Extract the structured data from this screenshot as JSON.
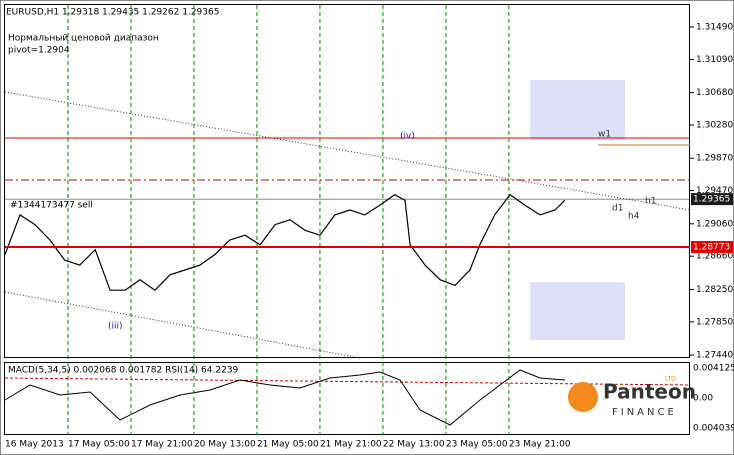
{
  "chart_data": [
    {
      "type": "line",
      "title": "EURUSD,H1  1.29318 1.29435 1.29262 1.29365",
      "annotations": [
        "Нормальный ценовой диапазон",
        "pivot=1.2904",
        "#1344173477 sell",
        "(iv)",
        "(iii)",
        "w1",
        "d1",
        "h1",
        "h4"
      ],
      "x": [
        4,
        7.8,
        11.6,
        15.4,
        19.2,
        23,
        26.9,
        30.7,
        34.5,
        38.3,
        42.1,
        45.9,
        49.7,
        53.5,
        57.3,
        61.1,
        65,
        68.8,
        72.6,
        76.4,
        80.2,
        84,
        87.8,
        91.6,
        95.4,
        99.2,
        103,
        105.6,
        106.9,
        110.7,
        114.5,
        118.3,
        122.1,
        124.6,
        128.4,
        132.3,
        136.1,
        139.9,
        143.7,
        146.2
      ],
      "values": [
        1.2868,
        1.2917,
        1.2905,
        1.2886,
        1.2861,
        1.2855,
        1.2874,
        1.2824,
        1.2824,
        1.2837,
        1.2824,
        1.2843,
        1.2849,
        1.2855,
        1.2868,
        1.2886,
        1.2892,
        1.288,
        1.2905,
        1.2911,
        1.2898,
        1.2892,
        1.2917,
        1.2923,
        1.2917,
        1.2929,
        1.2942,
        1.2935,
        1.288,
        1.2855,
        1.2837,
        1.283,
        1.2849,
        1.288,
        1.2917,
        1.2942,
        1.2929,
        1.2917,
        1.2923,
        1.2935
      ],
      "color": "#000000",
      "xlim": [
        4,
        178
      ],
      "xticks": [
        {
          "value": 4,
          "label": "16 May 2013"
        },
        {
          "value": 20,
          "label": "17 May 05:00"
        },
        {
          "value": 36,
          "label": "17 May 21:00"
        },
        {
          "value": 52,
          "label": "20 May 13:00"
        },
        {
          "value": 68,
          "label": "21 May 05:00"
        },
        {
          "value": 84,
          "label": "21 May 21:00"
        },
        {
          "value": 100,
          "label": "22 May 13:00"
        },
        {
          "value": 116,
          "label": "23 May 05:00"
        },
        {
          "value": 132,
          "label": "23 May 21:00"
        }
      ],
      "ylim": [
        1.27403,
        1.31762
      ],
      "yticks": [
        {
          "value": 1.3149,
          "label": "1.31490"
        },
        {
          "value": 1.3109,
          "label": "1.31090"
        },
        {
          "value": 1.3068,
          "label": "1.30680"
        },
        {
          "value": 1.3028,
          "label": "1.30280"
        },
        {
          "value": 1.2987,
          "label": "1.29870"
        },
        {
          "value": 1.2947,
          "label": "1.29470"
        },
        {
          "value": 1.2906,
          "label": "1.29060"
        },
        {
          "value": 1.2866,
          "label": "1.28660"
        },
        {
          "value": 1.2825,
          "label": "1.28250"
        },
        {
          "value": 1.2785,
          "label": "1.27850"
        },
        {
          "value": 1.2744,
          "label": "1.27440"
        }
      ],
      "markers": [
        {
          "value": 1.29365,
          "color": "#1a1a1a"
        },
        {
          "value": 1.28773,
          "color": "#e00000"
        }
      ],
      "grid": true
    }
  ],
  "indicator_panel": {
    "title": "MACD(5,34,5) 0.002068 0.001782 RSI(14) 64.2239",
    "axis_labels": [
      "0.004125",
      "0.00",
      "0.004039"
    ]
  },
  "logo": {
    "name": "Panteon",
    "sub": "FINANCE",
    "badge": "LTD"
  }
}
